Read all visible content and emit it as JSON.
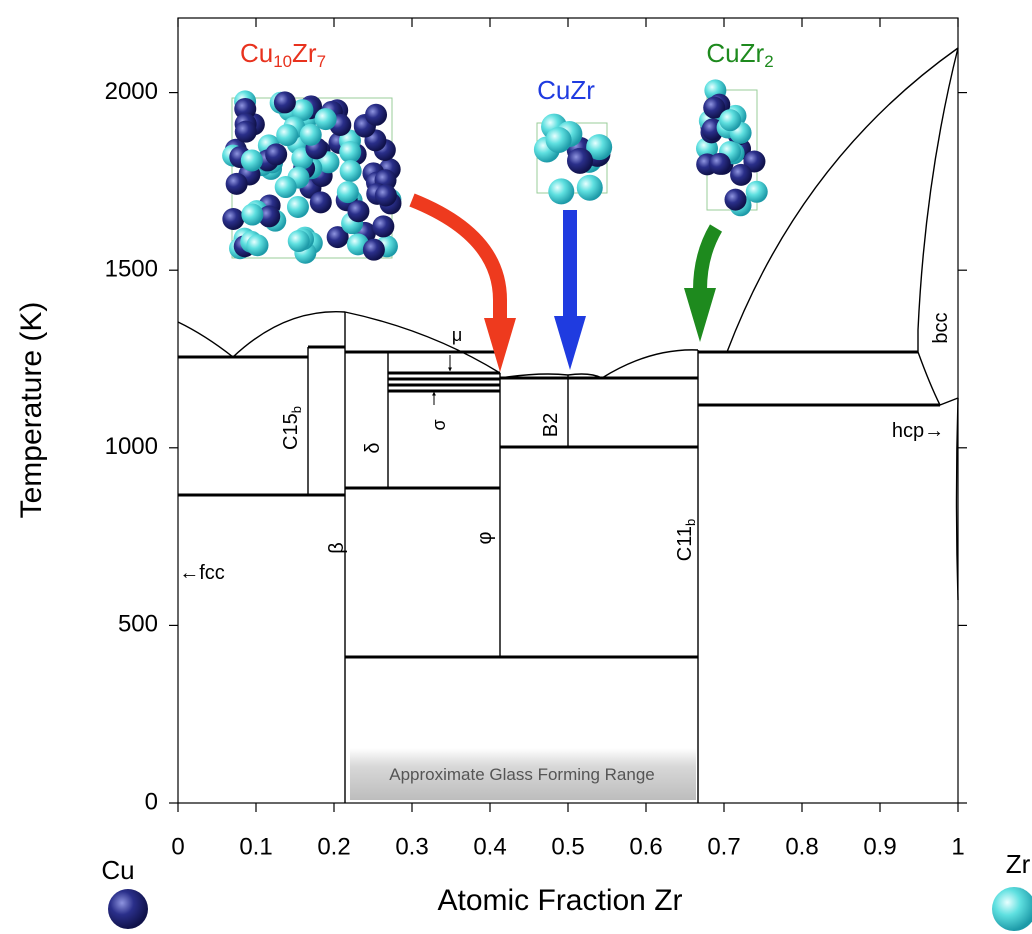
{
  "chart_data": {
    "type": "phase-diagram",
    "xlabel": "Atomic Fraction Zr",
    "ylabel": "Temperature (K)",
    "xlim": [
      0,
      1
    ],
    "ylim": [
      0,
      2210
    ],
    "xticks": [
      0,
      0.1,
      0.2,
      0.3,
      0.4,
      0.5,
      0.6,
      0.7,
      0.8,
      0.9,
      1
    ],
    "yticks": [
      0,
      500,
      1000,
      1500,
      2000
    ],
    "elements": [
      "Cu",
      "Zr"
    ],
    "annotations": [
      {
        "parts": [
          "Cu",
          "10",
          "Zr",
          "7"
        ],
        "color": "#e8321e"
      },
      {
        "parts": [
          "CuZr"
        ],
        "color": "#1f3be0"
      },
      {
        "parts": [
          "CuZr",
          "2"
        ],
        "color": "#1e8a1e"
      },
      {
        "parts": [
          "C15",
          "b"
        ],
        "color": "#000000"
      },
      {
        "parts": [
          "δ"
        ],
        "color": "#000000"
      },
      {
        "parts": [
          "σ"
        ],
        "color": "#000000"
      },
      {
        "parts": [
          "μ"
        ],
        "color": "#000000"
      },
      {
        "parts": [
          "B2"
        ],
        "color": "#000000"
      },
      {
        "parts": [
          "φ"
        ],
        "color": "#000000"
      },
      {
        "parts": [
          "β"
        ],
        "color": "#000000"
      },
      {
        "parts": [
          "C11",
          "b"
        ],
        "color": "#000000"
      },
      {
        "parts": [
          "←fcc"
        ],
        "color": "#000000"
      },
      {
        "parts": [
          "bcc"
        ],
        "color": "#000000"
      },
      {
        "parts": [
          "hcp→"
        ],
        "color": "#000000"
      },
      {
        "parts": [
          "Approximate Glass Forming Range"
        ],
        "color": "#555555"
      }
    ]
  }
}
